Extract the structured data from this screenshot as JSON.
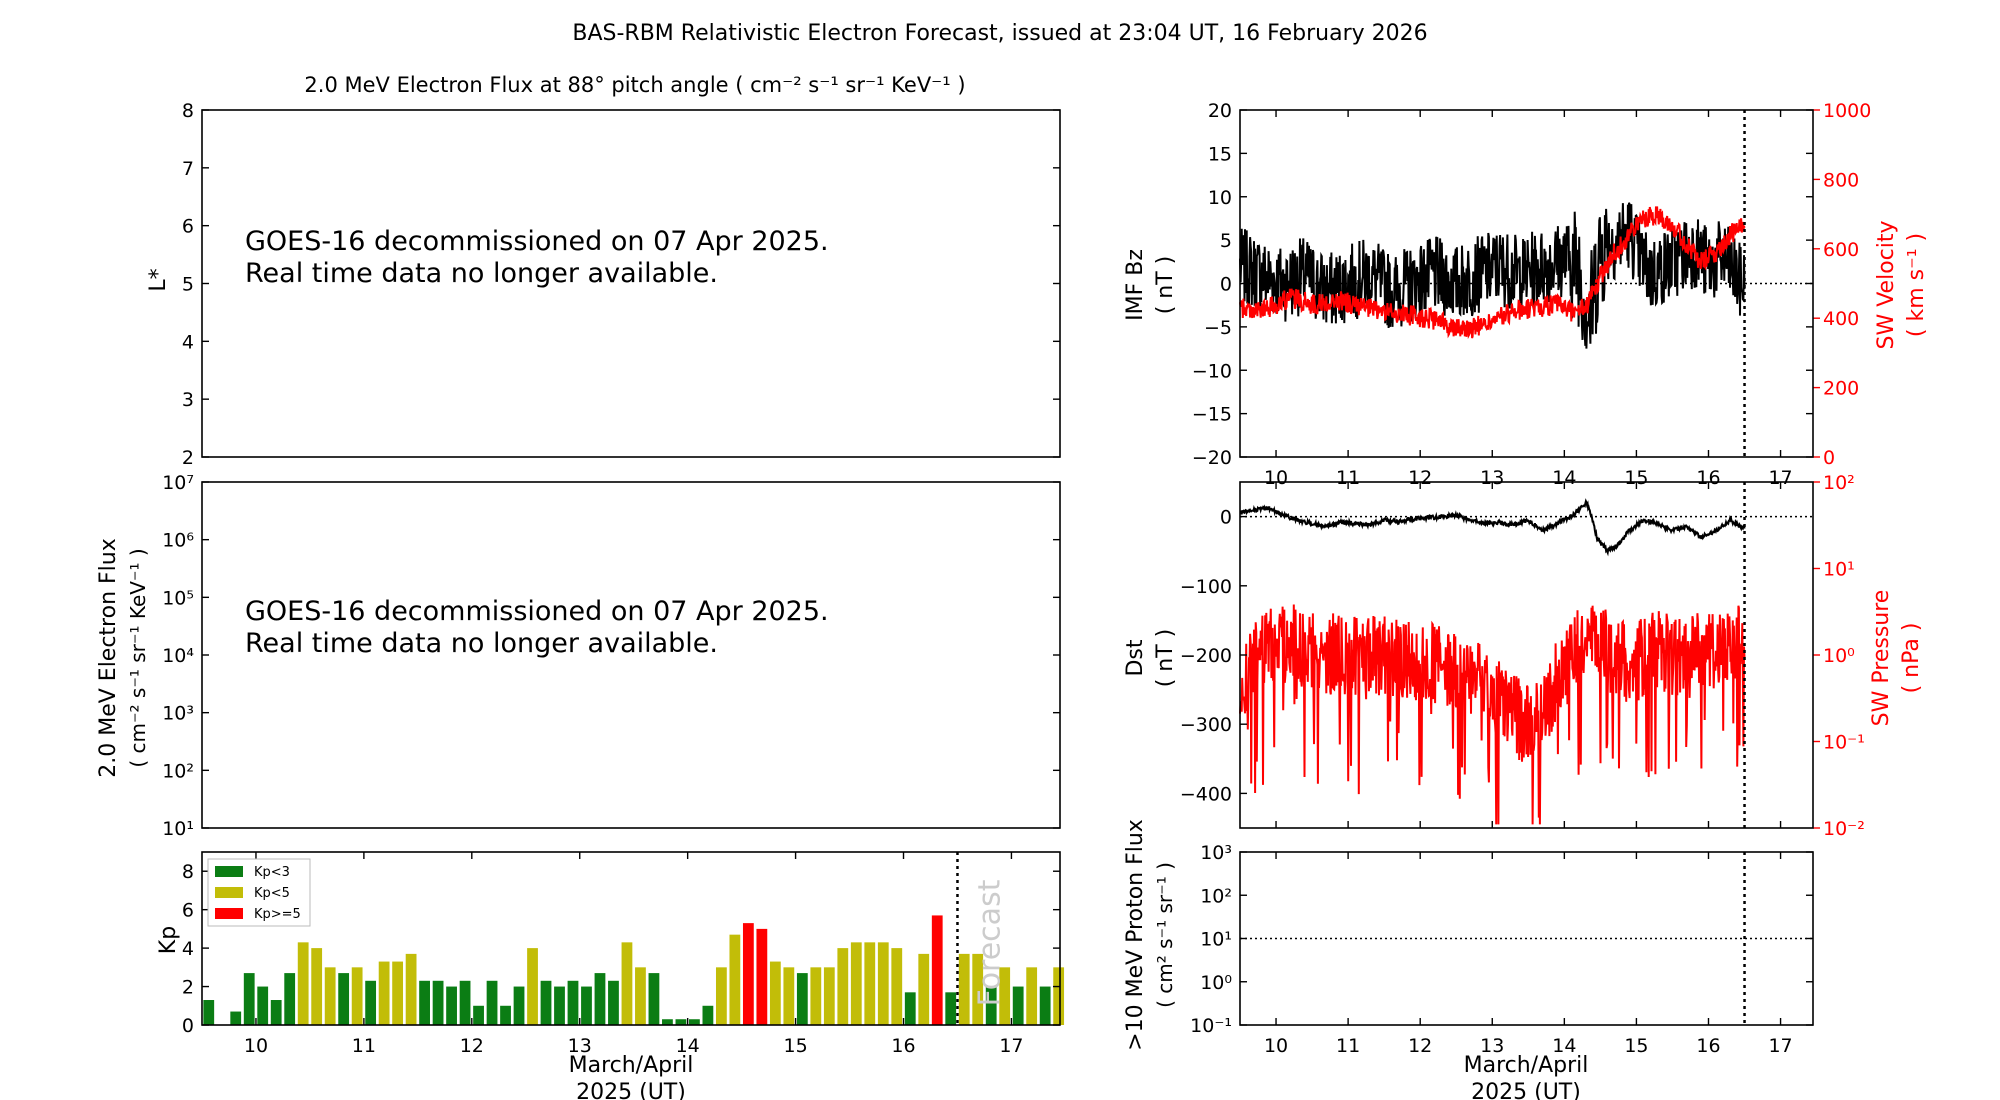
{
  "title": "BAS-RBM Relativistic Electron Forecast, issued at 23:04 UT, 16 February 2026",
  "colors": {
    "green": "#0b7d14",
    "yellow": "#c2bd08",
    "red": "#ff0000",
    "black": "#000000"
  },
  "chart_data": [
    {
      "id": "lstar",
      "type": "line",
      "title": "2.0 MeV Electron Flux at 88° pitch angle ( cm⁻² s⁻¹ sr⁻¹ KeV⁻¹ )",
      "ylabel": "L*",
      "ylim": [
        2,
        8
      ],
      "yticks": [
        "2",
        "3",
        "4",
        "5",
        "6",
        "7",
        "8"
      ],
      "message": [
        "GOES-16 decommissioned on 07 Apr 2025.",
        "Real time data no longer available."
      ]
    },
    {
      "id": "eflux",
      "type": "line",
      "ylabel": [
        "2.0 MeV Electron Flux",
        "( cm⁻² s⁻¹ sr⁻¹ KeV⁻¹ )"
      ],
      "yscale": "log",
      "yticks": [
        "10¹",
        "10²",
        "10³",
        "10⁴",
        "10⁵",
        "10⁶",
        "10⁷"
      ],
      "message": [
        "GOES-16 decommissioned on 07 Apr 2025.",
        "Real time data no longer available."
      ]
    },
    {
      "id": "kp",
      "type": "bar",
      "ylabel": "Kp",
      "ylim": [
        0,
        9
      ],
      "yticks": [
        "0",
        "2",
        "4",
        "6",
        "8"
      ],
      "xlim": [
        9.5,
        17.45
      ],
      "xticks": [
        "10",
        "11",
        "12",
        "13",
        "14",
        "15",
        "16",
        "17"
      ],
      "xlabel": [
        "March/April",
        "2025 (UT)"
      ],
      "forecast_start": 16.5,
      "forecast_label": "Forecast",
      "legend": [
        {
          "label": "Kp<3",
          "color": "green"
        },
        {
          "label": "Kp<5",
          "color": "yellow"
        },
        {
          "label": "Kp>=5",
          "color": "red"
        }
      ],
      "values": [
        1.3,
        0,
        0.7,
        2.7,
        2.0,
        1.3,
        2.7,
        4.3,
        4.0,
        3.0,
        2.7,
        3.0,
        2.3,
        3.3,
        3.3,
        3.7,
        2.3,
        2.3,
        2.0,
        2.3,
        1.0,
        2.3,
        1.0,
        2.0,
        4.0,
        2.3,
        2.0,
        2.3,
        2.0,
        2.7,
        2.3,
        4.3,
        3.0,
        2.7,
        0.3,
        0.3,
        0.3,
        1.0,
        3.0,
        4.7,
        5.3,
        5.0,
        3.3,
        3.0,
        2.7,
        3.0,
        3.0,
        4.0,
        4.3,
        4.3,
        4.3,
        4.0,
        1.7,
        3.7,
        5.7,
        1.7,
        3.7,
        3.7,
        2.0,
        3.0,
        2.0,
        3.0,
        2.0,
        3.0
      ]
    },
    {
      "id": "imf",
      "type": "line",
      "ylabel": [
        "IMF Bz",
        "( nT )"
      ],
      "ylim": [
        -20,
        20
      ],
      "yticks": [
        "−20",
        "−15",
        "−10",
        "−5",
        "0",
        "5",
        "10",
        "15",
        "20"
      ],
      "y2label": [
        "SW Velocity",
        "( km s⁻¹ )"
      ],
      "y2lim": [
        0,
        1000
      ],
      "y2ticks": [
        "0",
        "200",
        "400",
        "600",
        "800",
        "1000"
      ],
      "series": [
        {
          "name": "IMF Bz (nT)",
          "color": "black",
          "x": [
            9.5,
            9.8,
            10.1,
            10.4,
            10.7,
            11.0,
            11.3,
            11.6,
            11.9,
            12.2,
            12.5,
            12.8,
            13.1,
            13.4,
            13.7,
            14.0,
            14.2,
            14.35,
            14.5,
            14.7,
            14.9,
            15.05,
            15.2,
            15.4,
            15.6,
            15.8,
            16.0,
            16.2,
            16.45
          ],
          "y": [
            2,
            1,
            0,
            1,
            -1,
            0,
            1,
            -1,
            0,
            1,
            0,
            1,
            2,
            1,
            2,
            3,
            2,
            -4,
            4,
            5,
            6,
            3,
            1,
            2,
            3,
            4,
            2,
            3,
            0
          ]
        },
        {
          "name": "SW Velocity (km s⁻¹)",
          "color": "red",
          "x": [
            9.5,
            9.8,
            10.2,
            10.5,
            10.9,
            11.2,
            11.5,
            11.8,
            12.1,
            12.4,
            12.7,
            13.0,
            13.3,
            13.6,
            13.9,
            14.1,
            14.3,
            14.5,
            14.7,
            14.9,
            15.1,
            15.3,
            15.5,
            15.7,
            15.9,
            16.1,
            16.3,
            16.45
          ],
          "y": [
            430,
            420,
            460,
            440,
            450,
            430,
            420,
            410,
            400,
            380,
            370,
            390,
            420,
            430,
            440,
            420,
            430,
            520,
            590,
            640,
            690,
            700,
            670,
            610,
            560,
            590,
            640,
            660
          ]
        }
      ],
      "hline": 0,
      "now": 16.5,
      "xlim": [
        9.5,
        17.45
      ]
    },
    {
      "id": "dst",
      "type": "line",
      "ylabel": [
        "Dst",
        "( nT )"
      ],
      "ylim": [
        -450,
        50
      ],
      "yticks": [
        "−400",
        "−300",
        "−200",
        "−100",
        "0"
      ],
      "y2label": [
        "SW Pressure",
        "( nPa )"
      ],
      "y2scale": "log",
      "y2ticks": [
        "10⁻²",
        "10⁻¹",
        "10⁰",
        "10¹",
        "10²"
      ],
      "series": [
        {
          "name": "Dst (nT)",
          "color": "black",
          "x": [
            9.5,
            9.7,
            9.9,
            10.1,
            10.3,
            10.5,
            10.7,
            10.9,
            11.1,
            11.3,
            11.5,
            11.7,
            11.9,
            12.1,
            12.3,
            12.5,
            12.7,
            12.9,
            13.1,
            13.3,
            13.5,
            13.7,
            13.9,
            14.1,
            14.2,
            14.3,
            14.35,
            14.45,
            14.6,
            14.75,
            14.9,
            15.1,
            15.3,
            15.5,
            15.7,
            15.9,
            16.1,
            16.3,
            16.45
          ],
          "y": [
            5,
            10,
            12,
            2,
            -5,
            -10,
            -15,
            -8,
            -10,
            -12,
            -5,
            -8,
            -3,
            -2,
            0,
            2,
            -5,
            -10,
            -8,
            -12,
            -5,
            -20,
            -10,
            0,
            10,
            20,
            10,
            -30,
            -50,
            -40,
            -20,
            -5,
            -10,
            -20,
            -15,
            -30,
            -20,
            -5,
            -15
          ]
        },
        {
          "name": "SW Pressure (nPa)",
          "color": "red",
          "x": [
            9.5,
            9.7,
            10.0,
            10.3,
            10.6,
            10.9,
            11.2,
            11.5,
            11.8,
            12.1,
            12.4,
            12.7,
            12.9,
            13.1,
            13.3,
            13.5,
            13.7,
            13.9,
            14.1,
            14.3,
            14.5,
            14.7,
            14.9,
            15.1,
            15.3,
            15.5,
            15.7,
            15.9,
            16.1,
            16.3,
            16.45
          ],
          "y": [
            0.4,
            0.8,
            1.5,
            1.3,
            1.1,
            1.0,
            0.9,
            1.0,
            0.8,
            0.9,
            0.7,
            0.6,
            0.4,
            0.3,
            0.2,
            0.15,
            0.2,
            0.5,
            0.9,
            1.4,
            1.2,
            1.0,
            0.8,
            0.9,
            1.1,
            1.0,
            0.9,
            1.2,
            1.0,
            1.3,
            1.4
          ]
        }
      ],
      "hline": 0,
      "now": 16.5,
      "xlim": [
        9.5,
        17.45
      ]
    },
    {
      "id": "proton",
      "type": "line",
      "ylabel": [
        ">10 MeV Proton Flux",
        "( cm² s⁻¹ sr⁻¹ )"
      ],
      "yscale": "log",
      "yticks": [
        "10⁻¹",
        "10⁰",
        "10¹",
        "10²",
        "10³"
      ],
      "hline_label": "10¹",
      "xlim": [
        9.5,
        17.45
      ],
      "xticks": [
        "10",
        "11",
        "12",
        "13",
        "14",
        "15",
        "16",
        "17"
      ],
      "xlabel": [
        "March/April",
        "2025 (UT)"
      ],
      "now": 16.5
    }
  ]
}
